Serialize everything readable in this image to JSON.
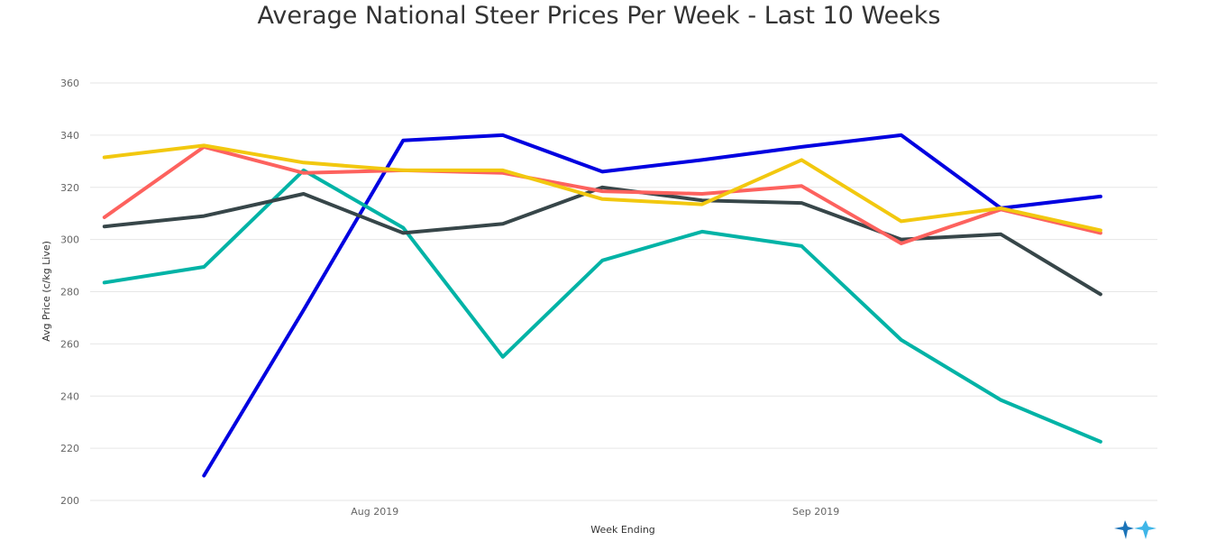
{
  "chart_data": {
    "type": "line",
    "title": "Average National Steer Prices Per Week - Last 10 Weeks",
    "xlabel": "Week Ending",
    "ylabel": "Avg Price (c/kg Live)",
    "ylim": [
      200,
      360
    ],
    "y_ticks": [
      200,
      220,
      240,
      260,
      280,
      300,
      320,
      340,
      360
    ],
    "x_range": [
      "2019-07-12",
      "2019-09-25"
    ],
    "x_ticks": [
      {
        "date": "2019-08-01",
        "label": "Aug 2019"
      },
      {
        "date": "2019-09-01",
        "label": "Sep 2019"
      }
    ],
    "x": [
      "2019-07-13",
      "2019-07-20",
      "2019-07-27",
      "2019-08-03",
      "2019-08-10",
      "2019-08-17",
      "2019-08-24",
      "2019-08-31",
      "2019-09-07",
      "2019-09-14",
      "2019-09-21"
    ],
    "grid": true,
    "series": [
      {
        "color": "#0000e0",
        "values": [
          null,
          209.5,
          273,
          338,
          340,
          326,
          330.5,
          335.5,
          340,
          312,
          316.5
        ]
      },
      {
        "color": "#00b3a6",
        "values": [
          283.5,
          289.5,
          326.5,
          304.5,
          255,
          292,
          303,
          297.5,
          261.5,
          238.5,
          222.5
        ]
      },
      {
        "color": "#374649",
        "values": [
          305,
          309,
          317.5,
          302.5,
          306,
          320,
          315,
          314,
          300,
          302,
          279
        ]
      },
      {
        "color": "#fd625e",
        "values": [
          308.5,
          335.5,
          325.5,
          326.5,
          325.5,
          318.5,
          317.5,
          320.5,
          298.5,
          311.5,
          302.5
        ]
      },
      {
        "color": "#f2c80f",
        "values": [
          331.5,
          336,
          329.5,
          326.5,
          326.5,
          315.5,
          313.5,
          330.5,
          307,
          312,
          303.5
        ]
      }
    ]
  },
  "logo": {
    "icon": "brand-logo-icon",
    "colors": [
      "#1a73b8",
      "#3fb6e8"
    ]
  }
}
